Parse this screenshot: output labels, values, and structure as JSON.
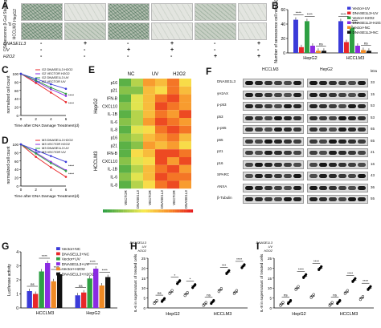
{
  "panels": {
    "A": {
      "label": "A",
      "ylabel": "Senescence β-Gal Staining of",
      "rows": [
        "HepG2",
        "HCCLM3"
      ],
      "treat_labels": [
        "DNASE1L3",
        "UV",
        "H2O2"
      ],
      "treat_matrix": [
        [
          "-",
          "+",
          "-",
          "+",
          "-",
          "+"
        ],
        [
          "-",
          "-",
          "+",
          "+",
          "-",
          "-"
        ],
        [
          "-",
          "-",
          "-",
          "-",
          "+",
          "+"
        ]
      ]
    },
    "B": {
      "label": "B",
      "chart_data": {
        "type": "bar",
        "ylabel": "Number of senescence cell ratio(%)",
        "ylim": [
          0,
          60
        ],
        "yticks": [
          0,
          20,
          40,
          60
        ],
        "categories": [
          "HepG2",
          "HCCLM3"
        ],
        "series": [
          {
            "name": "Vector+UV",
            "color": "#3b3bd9",
            "values": [
              46,
              44
            ]
          },
          {
            "name": "DNASE1L3+UV",
            "color": "#e8272a",
            "values": [
              8,
              15
            ]
          },
          {
            "name": "Vector+H2O2",
            "color": "#2ea043",
            "values": [
              44,
              35
            ]
          },
          {
            "name": "DNASE1L3+H2O2",
            "color": "#8a2be2",
            "values": [
              10,
              10
            ]
          },
          {
            "name": "Vector+NC",
            "color": "#f08a24",
            "values": [
              3,
              4
            ]
          },
          {
            "name": "DNASE1L3+NC",
            "color": "#111111",
            "values": [
              3,
              3
            ]
          }
        ],
        "annotations": [
          "****",
          "****",
          "ns",
          "****",
          "****",
          "ns"
        ]
      }
    },
    "C": {
      "label": "C",
      "chart_data": {
        "type": "line",
        "ylabel": "normalized cell count",
        "xlabel": "Time after DNA Damage Treatment(d)",
        "x": [
          0,
          2,
          4,
          6
        ],
        "ylim": [
          0,
          100
        ],
        "yticks": [
          0,
          20,
          40,
          60,
          80,
          100
        ],
        "series": [
          {
            "name": "G2 DNASE1L3 H2O2",
            "color": "#e8272a",
            "values": [
              100,
              78,
              55,
              32
            ]
          },
          {
            "name": "G2 VECTOR H2O2",
            "color": "#8a2be2",
            "values": [
              100,
              82,
              63,
              47
            ]
          },
          {
            "name": "G2 DNASE1L3 UV",
            "color": "#2ea043",
            "values": [
              100,
              84,
              67,
              52
            ]
          },
          {
            "name": "G2 VECTOR UV",
            "color": "#3b3bd9",
            "values": [
              100,
              88,
              75,
              64
            ]
          }
        ],
        "annotations": [
          "****",
          "****"
        ]
      }
    },
    "D": {
      "label": "D",
      "chart_data": {
        "type": "line",
        "ylabel": "normalized cell count",
        "xlabel": "Time after DNA Damage Treatment(d)",
        "x": [
          0,
          2,
          4,
          6
        ],
        "ylim": [
          0,
          100
        ],
        "yticks": [
          0,
          20,
          40,
          60,
          80,
          100
        ],
        "series": [
          {
            "name": "M3 DNASE1L3 H2O2",
            "color": "#e8272a",
            "values": [
              100,
              70,
              45,
              22
            ]
          },
          {
            "name": "M3 VECTOR H2O2",
            "color": "#8a2be2",
            "values": [
              100,
              80,
              58,
              38
            ]
          },
          {
            "name": "M3 DNASE1L3 UV",
            "color": "#2ea043",
            "values": [
              100,
              78,
              55,
              36
            ]
          },
          {
            "name": "M3 VECTOR UV",
            "color": "#3b3bd9",
            "values": [
              100,
              86,
              72,
              58
            ]
          }
        ],
        "annotations": [
          "****",
          "****"
        ]
      }
    },
    "E": {
      "label": "E",
      "headers": [
        "NC",
        "UV",
        "H2O2"
      ],
      "groups": [
        "HepG2",
        "HCCLM3"
      ],
      "rows": [
        "p16",
        "p21",
        "IFN-B",
        "CXCL10",
        "IL-1B",
        "IL-6",
        "IL-8",
        "p16",
        "p21",
        "IFN-B",
        "CXCL10",
        "IL-1B",
        "IL-6",
        "IL-8"
      ],
      "cols": [
        "VECTOR",
        "DNASE1L3",
        "VECTOR",
        "DNASE1L3",
        "VECTOR",
        "DNASE1L3"
      ],
      "legend": {
        "min": "row min",
        "mid": "log2CPM",
        "max": "row max"
      },
      "chart_data": {
        "type": "heatmap",
        "values": [
          [
            0.1,
            0.3,
            0.7,
            0.6,
            0.8,
            0.5
          ],
          [
            0.2,
            0.2,
            0.6,
            0.5,
            0.8,
            0.6
          ],
          [
            0.1,
            0.4,
            0.6,
            0.8,
            0.9,
            0.7
          ],
          [
            0.2,
            0.4,
            0.6,
            0.9,
            0.8,
            0.7
          ],
          [
            0.1,
            0.3,
            0.6,
            0.8,
            0.7,
            0.9
          ],
          [
            0.2,
            0.3,
            0.7,
            0.9,
            0.8,
            0.7
          ],
          [
            0.1,
            0.4,
            0.5,
            0.8,
            0.9,
            0.8
          ],
          [
            0.2,
            0.3,
            0.6,
            0.7,
            0.8,
            0.6
          ],
          [
            0.1,
            0.2,
            0.7,
            0.6,
            0.7,
            0.5
          ],
          [
            0.1,
            0.5,
            0.6,
            0.9,
            0.9,
            0.8
          ],
          [
            0.2,
            0.4,
            0.5,
            0.9,
            0.7,
            0.9
          ],
          [
            0.1,
            0.3,
            0.6,
            0.8,
            0.9,
            0.7
          ],
          [
            0.2,
            0.4,
            0.6,
            0.9,
            0.8,
            0.8
          ],
          [
            0.1,
            0.3,
            0.5,
            0.8,
            0.9,
            0.7
          ]
        ]
      }
    },
    "F": {
      "label": "F",
      "cell_lines": [
        "HCCLM3",
        "HepG2"
      ],
      "proteins": [
        "DNASE1L3",
        "γH2AX",
        "p-p53",
        "p53",
        "p-p65",
        "p65",
        "p21",
        "p16",
        "SPARC",
        "ANXA",
        "β-Tubulin"
      ],
      "kda": [
        "kDa",
        "33",
        "15",
        "53",
        "53",
        "65",
        "65",
        "21",
        "16",
        "43",
        "36",
        "55"
      ]
    },
    "G": {
      "label": "G",
      "chart_data": {
        "type": "bar",
        "ylabel": "Luciferase activity",
        "ylim": [
          0,
          4
        ],
        "yticks": [
          0,
          1,
          2,
          3,
          4
        ],
        "categories": [
          "HCCLM3",
          "HepG2"
        ],
        "series": [
          {
            "name": "Vector+NC",
            "color": "#3b3bd9",
            "values": [
              1.2,
              0.9
            ]
          },
          {
            "name": "DNASE1L3+NC",
            "color": "#e8272a",
            "values": [
              1.0,
              1.1
            ]
          },
          {
            "name": "Vector+UV",
            "color": "#2ea043",
            "values": [
              2.6,
              2.1
            ]
          },
          {
            "name": "DNASE1L3+UV",
            "color": "#8a2be2",
            "values": [
              3.2,
              2.8
            ]
          },
          {
            "name": "Vector+H2O2",
            "color": "#f08a24",
            "values": [
              1.9,
              1.6
            ]
          },
          {
            "name": "DNASE1L3+H2O2",
            "color": "#111111",
            "values": [
              2.4,
              2.2
            ]
          }
        ],
        "annotations": [
          "ns",
          "****",
          "****",
          "ns",
          "****",
          "****"
        ]
      }
    },
    "H": {
      "label": "H",
      "ylabel": "IL-6 in supernatant of treated cells",
      "ylim": [
        0,
        25
      ],
      "yticks": [
        0,
        5,
        10,
        15,
        20,
        25
      ],
      "treat_labels": [
        "DNASE1L3",
        "UV",
        "H2O2"
      ],
      "groups": [
        "HepG2",
        "HCCLM3"
      ],
      "chart_data": {
        "type": "scatter",
        "values": [
          3,
          4,
          8,
          13,
          7,
          11,
          2,
          3,
          9,
          18,
          8,
          21
        ]
      },
      "annotations": [
        "ns",
        "*",
        "*",
        "ns",
        "***",
        "****"
      ]
    },
    "I": {
      "label": "I",
      "ylabel": "IL-8 in supernatant of treated cells",
      "ylim": [
        0,
        25
      ],
      "yticks": [
        0,
        5,
        10,
        15,
        20,
        25
      ],
      "treat_labels": [
        "DNASE1L3",
        "UV",
        "H2O2"
      ],
      "groups": [
        "HepG2",
        "HCCLM3"
      ],
      "chart_data": {
        "type": "scatter",
        "values": [
          2,
          3,
          10,
          16,
          6,
          20,
          2,
          3,
          8,
          14,
          5,
          10
        ]
      },
      "annotations": [
        "ns",
        "****",
        "****",
        "ns",
        "****",
        "****"
      ]
    }
  }
}
